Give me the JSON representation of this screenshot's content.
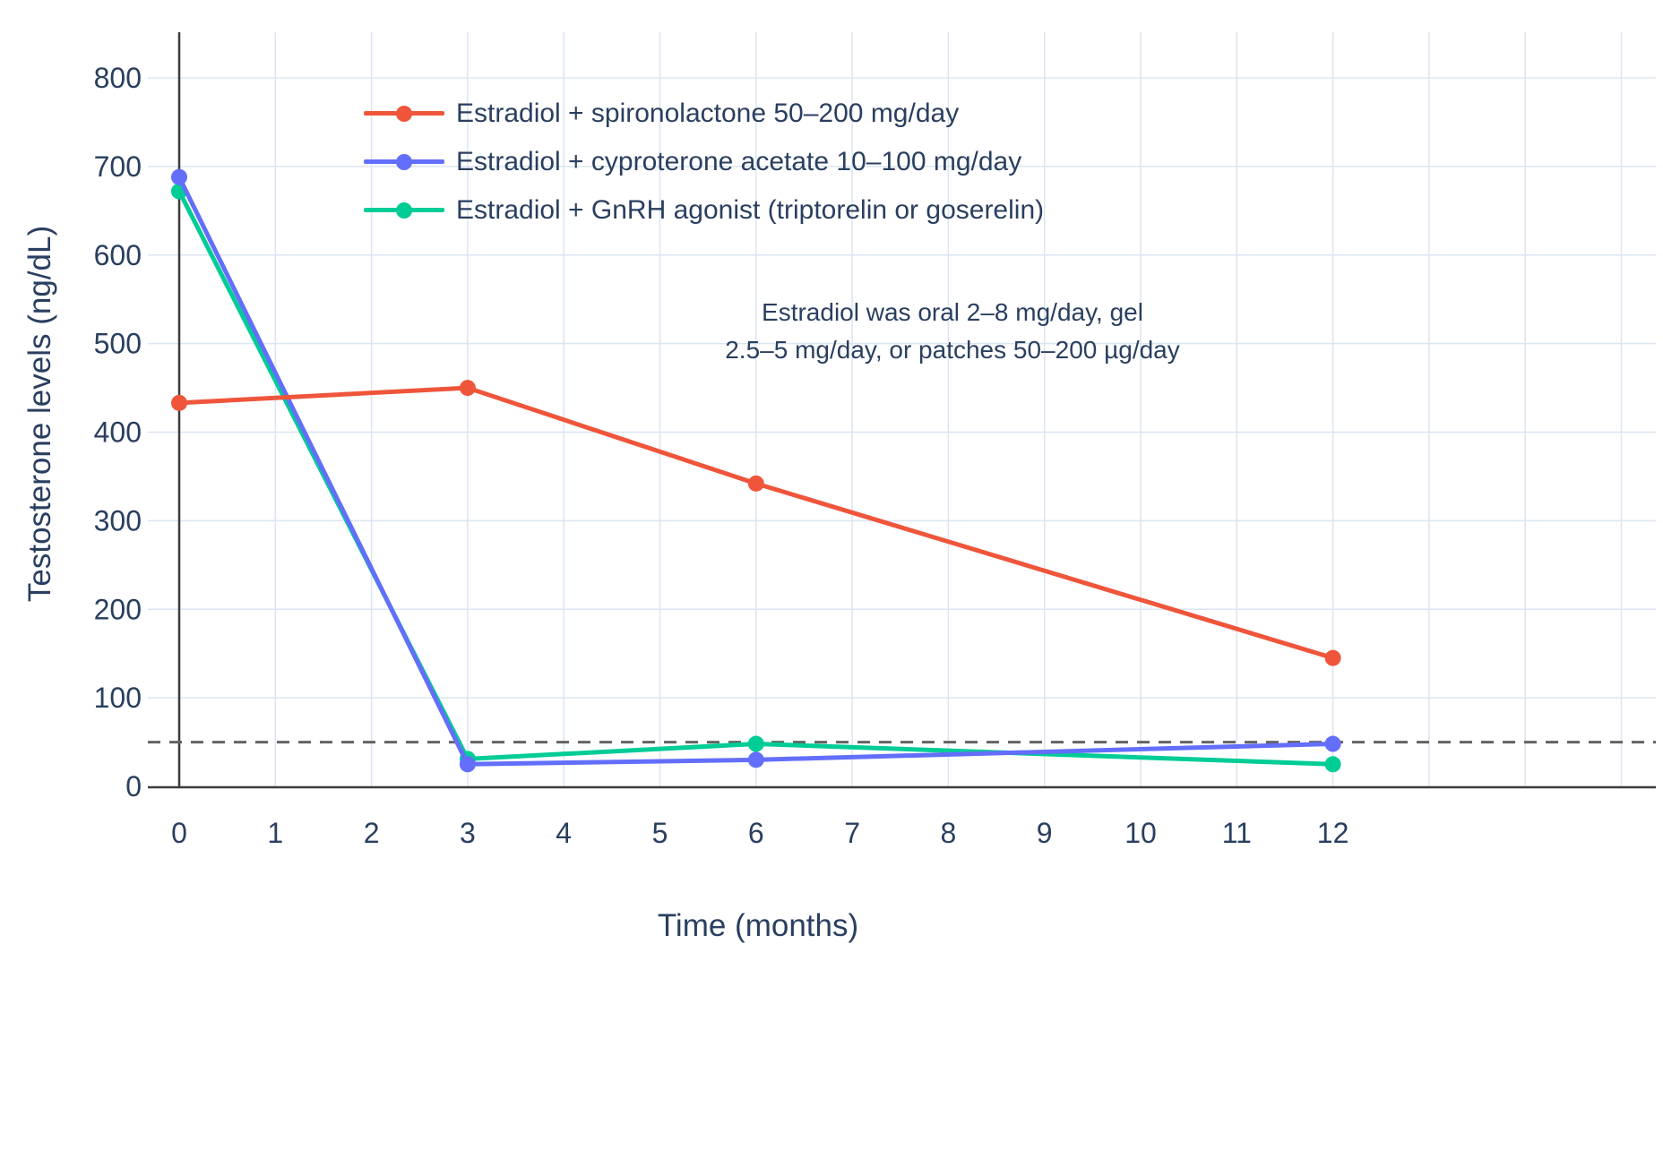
{
  "chart_data": {
    "type": "line",
    "xlabel": "Time (months)",
    "ylabel": "Testosterone levels (ng/dL)",
    "x": [
      0,
      3,
      6,
      12
    ],
    "x_ticks": [
      0,
      1,
      2,
      3,
      4,
      5,
      6,
      7,
      8,
      9,
      10,
      11,
      12
    ],
    "y_ticks": [
      0,
      100,
      200,
      300,
      400,
      500,
      600,
      700,
      800
    ],
    "xlim": [
      -0.33,
      15.4
    ],
    "ylim": [
      0,
      852
    ],
    "grid": true,
    "legend_position": "top-left-inside",
    "series": [
      {
        "name": "Estradiol + spironolactone 50–200 mg/day",
        "color": "#EF553B",
        "values": [
          433,
          450,
          342,
          145
        ]
      },
      {
        "name": "Estradiol + cyproterone acetate 10–100 mg/day",
        "color": "#636EFA",
        "values": [
          688,
          25,
          30,
          48
        ]
      },
      {
        "name": "Estradiol + GnRH agonist (triptorelin or goserelin)",
        "color": "#00CC96",
        "values": [
          672,
          31,
          48,
          25
        ]
      }
    ],
    "ref_line": {
      "y": 50,
      "style": "dashed",
      "color": "#636363"
    },
    "annotation": {
      "line1": "Estradiol was oral 2–8 mg/day, gel",
      "line2": "2.5–5 mg/day, or patches 50–200 µg/day"
    }
  },
  "colors": {
    "grid": "#dbe5f1",
    "axis": "#3b3b3b",
    "text": "#2a3f5f",
    "background": "#ffffff"
  }
}
